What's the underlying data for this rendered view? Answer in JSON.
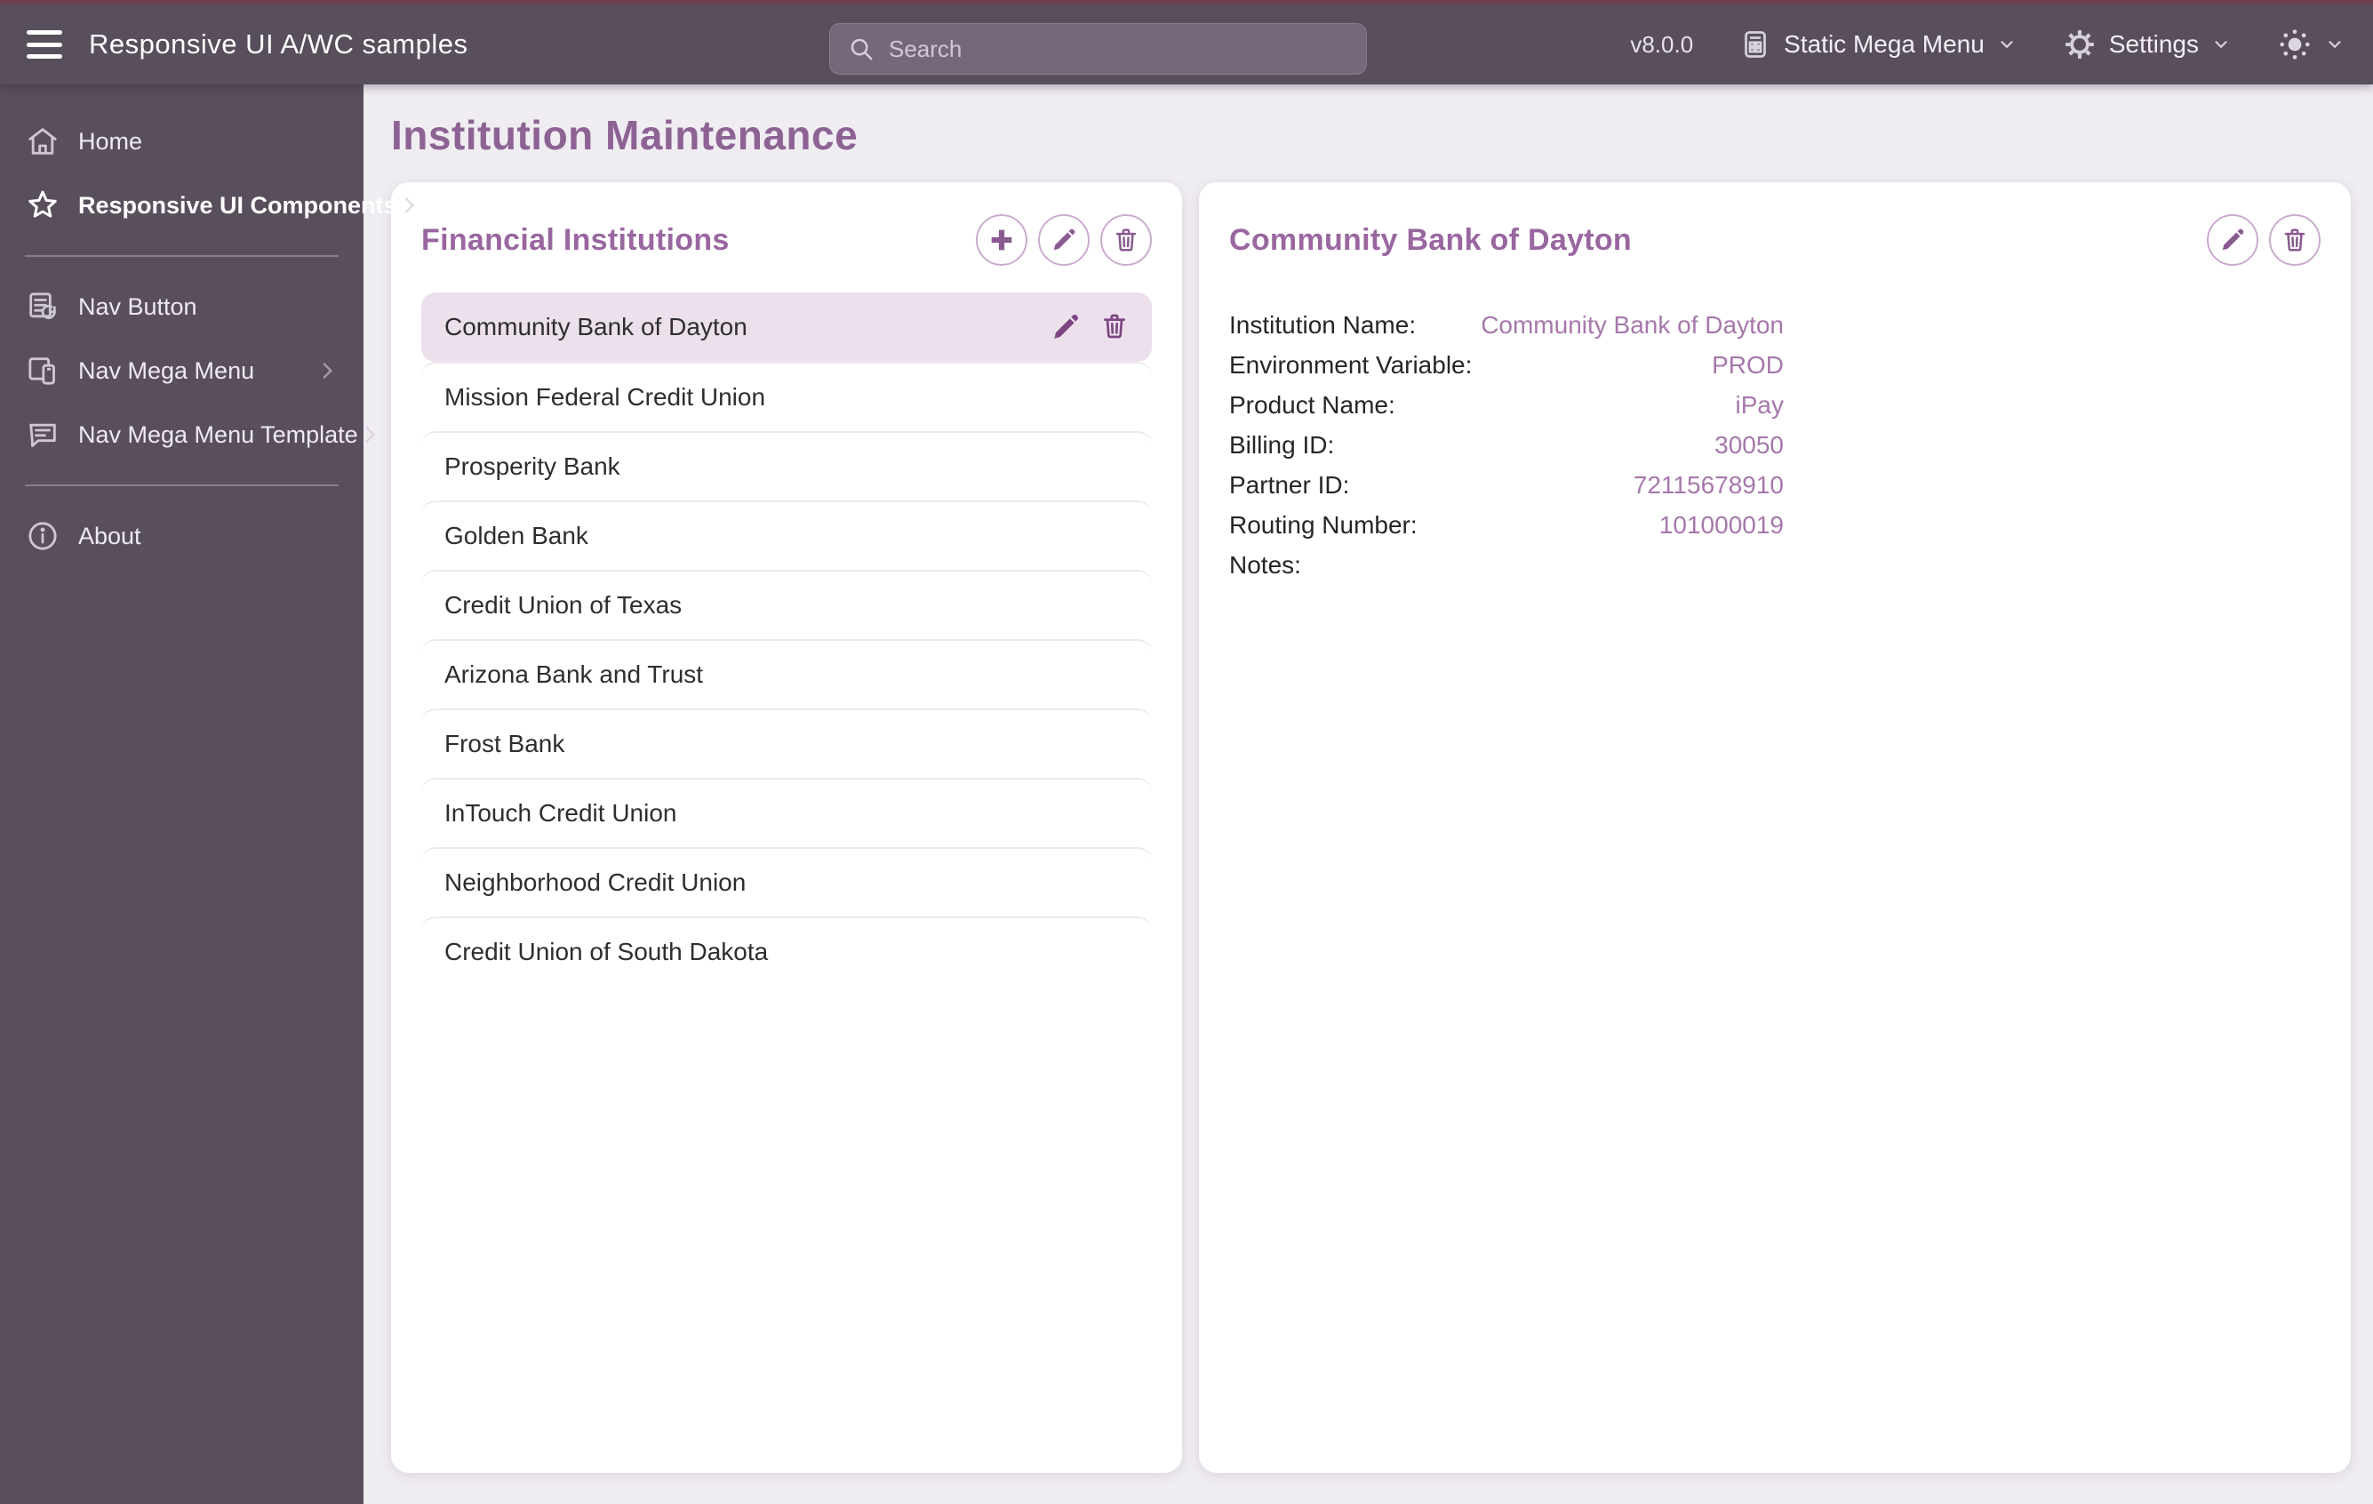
{
  "topbar": {
    "title": "Responsive UI A/WC samples",
    "search_placeholder": "Search",
    "version": "v8.0.0",
    "mega_menu_label": "Static Mega Menu",
    "settings_label": "Settings"
  },
  "sidebar": {
    "groups": [
      [
        {
          "label": "Home",
          "icon": "home-icon",
          "bold": false,
          "chevron": false
        },
        {
          "label": "Responsive UI Components",
          "icon": "star-icon",
          "bold": true,
          "chevron": true
        }
      ],
      [
        {
          "label": "Nav Button",
          "icon": "nav-button-icon",
          "bold": false,
          "chevron": false
        },
        {
          "label": "Nav Mega Menu",
          "icon": "nav-mega-menu-icon",
          "bold": false,
          "chevron": true
        },
        {
          "label": "Nav Mega Menu Template",
          "icon": "nav-mega-menu-template-icon",
          "bold": false,
          "chevron": true
        }
      ],
      [
        {
          "label": "About",
          "icon": "info-icon",
          "bold": false,
          "chevron": false
        }
      ]
    ]
  },
  "page": {
    "title": "Institution Maintenance"
  },
  "list_card": {
    "title": "Financial Institutions",
    "selected_index": 0,
    "items": [
      "Community Bank of Dayton",
      "Mission Federal Credit Union",
      "Prosperity Bank",
      "Golden Bank",
      "Credit Union of Texas",
      "Arizona Bank and Trust",
      "Frost Bank",
      "InTouch Credit Union",
      "Neighborhood Credit Union",
      "Credit Union of South Dakota"
    ]
  },
  "detail_card": {
    "title": "Community Bank of Dayton",
    "fields": [
      {
        "label": "Institution Name:",
        "value": "Community Bank of Dayton"
      },
      {
        "label": "Environment Variable:",
        "value": "PROD"
      },
      {
        "label": "Product Name:",
        "value": "iPay"
      },
      {
        "label": "Billing ID:",
        "value": "30050"
      },
      {
        "label": "Partner ID:",
        "value": "72115678910"
      },
      {
        "label": "Routing Number:",
        "value": "101000019"
      },
      {
        "label": "Notes:",
        "value": ""
      }
    ]
  },
  "colors": {
    "topbar_bg": "#594e5c",
    "top_strip": "#6e4152",
    "content_bg": "#f0edf2",
    "page_title": "#8d6394",
    "card_title": "#9966a0",
    "accent_icon": "#8a5a91",
    "selected_row_bg": "#ece0ec",
    "detail_value": "#a678ab"
  }
}
